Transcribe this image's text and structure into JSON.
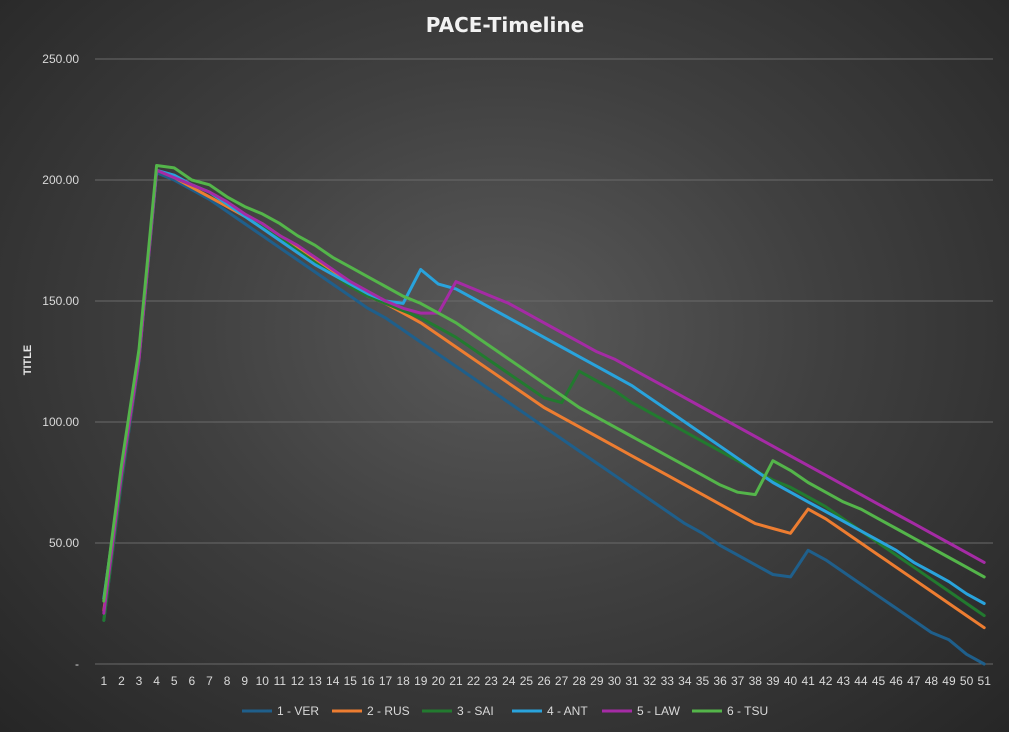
{
  "chart_data": {
    "type": "line",
    "title": "PACE-Timeline",
    "xlabel": "",
    "ylabel": "TITLE",
    "ylim": [
      0,
      250
    ],
    "yticks": [
      0,
      50,
      100,
      150,
      200,
      250
    ],
    "ytick_labels": [
      "-",
      "50.00",
      "100.00",
      "150.00",
      "200.00",
      "250.00"
    ],
    "grid": true,
    "legend_position": "bottom",
    "x": [
      1,
      2,
      3,
      4,
      5,
      6,
      7,
      8,
      9,
      10,
      11,
      12,
      13,
      14,
      15,
      16,
      17,
      18,
      19,
      20,
      21,
      22,
      23,
      24,
      25,
      26,
      27,
      28,
      29,
      30,
      31,
      32,
      33,
      34,
      35,
      36,
      37,
      38,
      39,
      40,
      41,
      42,
      43,
      44,
      45,
      46,
      47,
      48,
      49,
      50,
      51
    ],
    "series": [
      {
        "name": "1 - VER",
        "color": "#1f5f8b",
        "values": [
          18,
          75,
          125,
          203,
          200,
          196,
          192,
          187,
          182,
          177,
          172,
          167,
          162,
          157,
          152,
          147,
          143,
          138,
          133,
          128,
          123,
          118,
          113,
          108,
          103,
          98,
          93,
          88,
          83,
          78,
          73,
          68,
          63,
          58,
          54,
          49,
          45,
          41,
          37,
          36,
          47,
          43,
          38,
          33,
          28,
          23,
          18,
          13,
          10,
          4,
          0
        ]
      },
      {
        "name": "2 - RUS",
        "color": "#ed7d31",
        "values": [
          22,
          77,
          126,
          204,
          201,
          197,
          193,
          189,
          185,
          182,
          177,
          172,
          167,
          162,
          157,
          152,
          149,
          145,
          141,
          136,
          131,
          126,
          121,
          116,
          111,
          106,
          102,
          98,
          94,
          90,
          86,
          82,
          78,
          74,
          70,
          66,
          62,
          58,
          56,
          54,
          64,
          60,
          55,
          50,
          45,
          40,
          35,
          30,
          25,
          20,
          15
        ]
      },
      {
        "name": "3 - SAI",
        "color": "#227a2f",
        "values": [
          18,
          76,
          126,
          204,
          201,
          198,
          195,
          190,
          186,
          181,
          176,
          171,
          166,
          161,
          156,
          152,
          149,
          146,
          143,
          139,
          135,
          130,
          125,
          120,
          115,
          110,
          108,
          121,
          117,
          113,
          108,
          104,
          100,
          96,
          92,
          88,
          84,
          80,
          76,
          73,
          69,
          65,
          60,
          55,
          50,
          45,
          40,
          35,
          30,
          25,
          20
        ]
      },
      {
        "name": "4 - ANT",
        "color": "#29a3dc",
        "values": [
          27,
          79,
          128,
          204,
          202,
          198,
          195,
          190,
          185,
          180,
          175,
          170,
          165,
          161,
          157,
          153,
          150,
          149,
          163,
          157,
          155,
          151,
          147,
          143,
          139,
          135,
          131,
          127,
          123,
          119,
          115,
          110,
          105,
          100,
          95,
          90,
          85,
          80,
          75,
          71,
          67,
          63,
          59,
          55,
          51,
          47,
          42,
          38,
          34,
          29,
          25
        ]
      },
      {
        "name": "5 - LAW",
        "color": "#a52ba5",
        "values": [
          21,
          78,
          126,
          204,
          201,
          198,
          195,
          191,
          186,
          182,
          177,
          173,
          168,
          163,
          158,
          154,
          150,
          147,
          145,
          145,
          158,
          155,
          152,
          149,
          145,
          141,
          137,
          133,
          129,
          126,
          122,
          118,
          114,
          110,
          106,
          102,
          98,
          94,
          90,
          86,
          82,
          78,
          74,
          70,
          66,
          62,
          58,
          54,
          50,
          46,
          42
        ]
      },
      {
        "name": "6 - TSU",
        "color": "#54b54a",
        "values": [
          26,
          82,
          130,
          206,
          205,
          200,
          198,
          193,
          189,
          186,
          182,
          177,
          173,
          168,
          164,
          160,
          156,
          152,
          149,
          145,
          141,
          136,
          131,
          126,
          121,
          116,
          111,
          106,
          102,
          98,
          94,
          90,
          86,
          82,
          78,
          74,
          71,
          70,
          84,
          80,
          75,
          71,
          67,
          64,
          60,
          56,
          52,
          48,
          44,
          40,
          36
        ]
      }
    ]
  }
}
